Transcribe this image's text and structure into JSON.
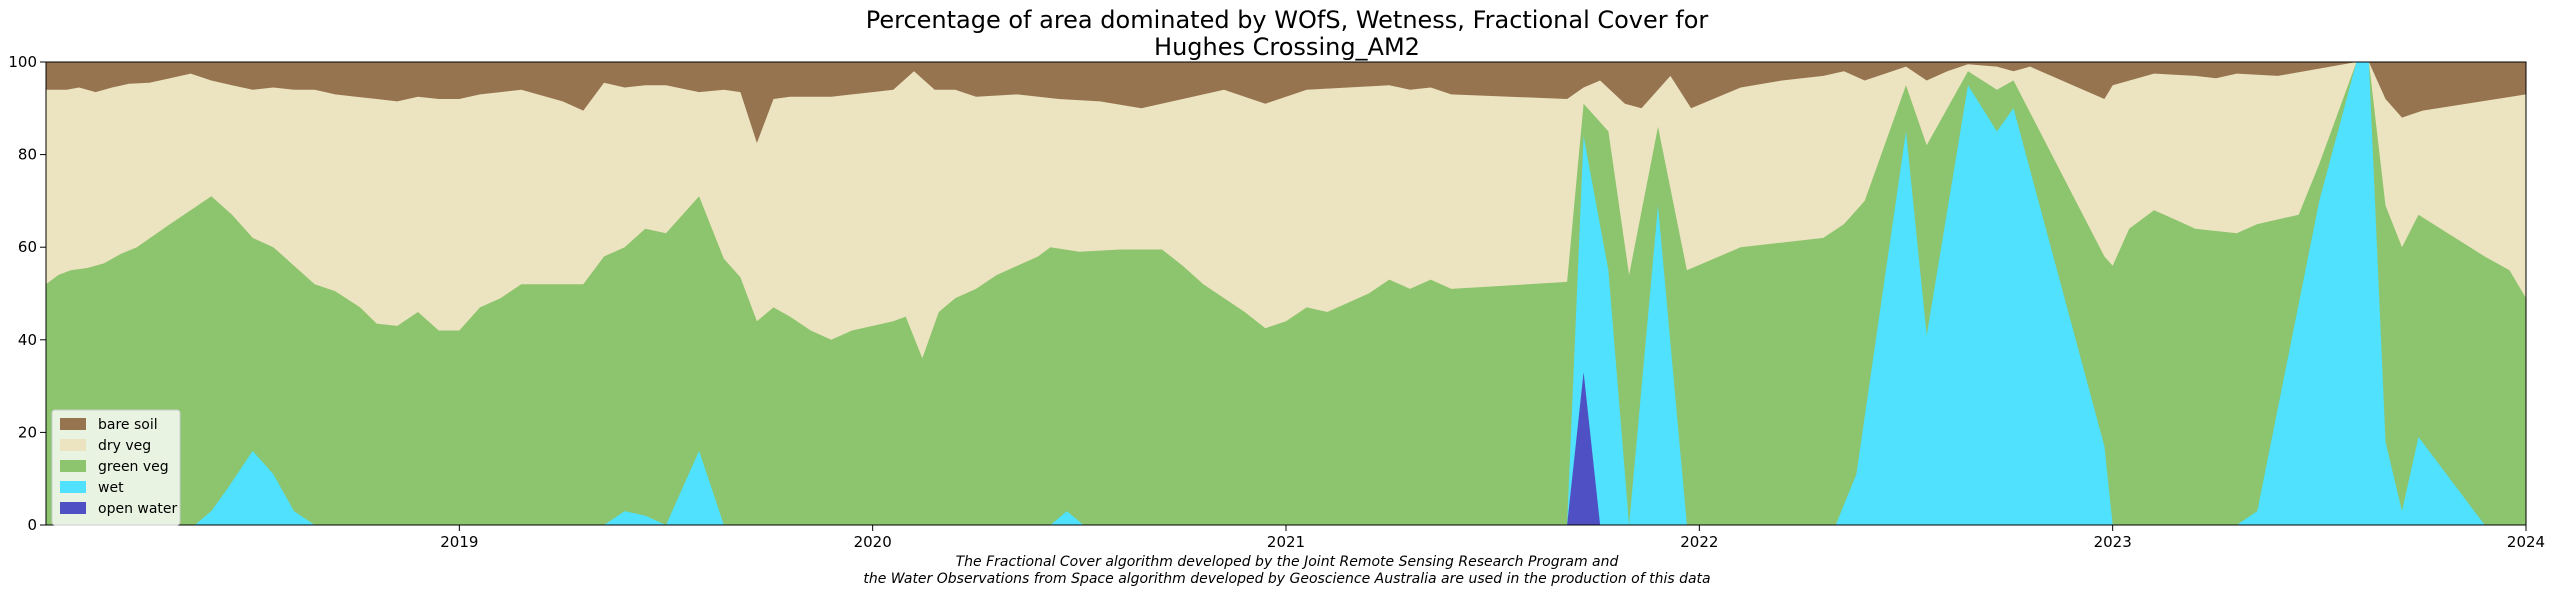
{
  "chart_data": {
    "type": "area",
    "stacked": true,
    "title_line1": "Percentage of area dominated by WOfS, Wetness, Fractional Cover for",
    "title_line2": "Hughes Crossing_AM2",
    "footnote_line1": "The Fractional Cover algorithm developed by the Joint Remote Sensing Research Program and",
    "footnote_line2": "the Water Observations from Space algorithm developed by Geoscience Australia are used in the production of this data",
    "xlim": [
      2018.0,
      2024.0
    ],
    "ylim": [
      0,
      100
    ],
    "x_ticks": [
      {
        "value": 2019,
        "label": "2019"
      },
      {
        "value": 2020,
        "label": "2020"
      },
      {
        "value": 2021,
        "label": "2021"
      },
      {
        "value": 2022,
        "label": "2022"
      },
      {
        "value": 2023,
        "label": "2023"
      },
      {
        "value": 2024,
        "label": "2024"
      }
    ],
    "y_ticks": [
      {
        "value": 0,
        "label": "0"
      },
      {
        "value": 20,
        "label": "20"
      },
      {
        "value": 40,
        "label": "40"
      },
      {
        "value": 60,
        "label": "60"
      },
      {
        "value": 80,
        "label": "80"
      },
      {
        "value": 100,
        "label": "100"
      }
    ],
    "grid": false,
    "legend_position": "lower-left",
    "legend": [
      {
        "name": "bare soil",
        "color": "#977450"
      },
      {
        "name": "dry veg",
        "color": "#ece3c0"
      },
      {
        "name": "green veg",
        "color": "#8dc46e"
      },
      {
        "name": "wet",
        "color": "#4fe1fd"
      },
      {
        "name": "open water",
        "color": "#4e50c3"
      }
    ],
    "series": [
      {
        "name": "open water",
        "color": "#4e50c3",
        "points": [
          [
            2018.0,
            0
          ],
          [
            2021.68,
            0
          ],
          [
            2021.72,
            33
          ],
          [
            2021.76,
            0
          ],
          [
            2024.0,
            0
          ]
        ]
      },
      {
        "name": "wet",
        "color": "#4fe1fd",
        "points": [
          [
            2018.0,
            0
          ],
          [
            2018.36,
            0
          ],
          [
            2018.4,
            3
          ],
          [
            2018.44,
            8
          ],
          [
            2018.5,
            16
          ],
          [
            2018.55,
            11
          ],
          [
            2018.6,
            3
          ],
          [
            2018.65,
            0
          ],
          [
            2019.35,
            0
          ],
          [
            2019.4,
            3
          ],
          [
            2019.45,
            2
          ],
          [
            2019.5,
            0
          ],
          [
            2019.58,
            16
          ],
          [
            2019.64,
            0
          ],
          [
            2020.43,
            0
          ],
          [
            2020.47,
            3
          ],
          [
            2020.51,
            0
          ],
          [
            2021.68,
            0
          ],
          [
            2021.72,
            84
          ],
          [
            2021.78,
            55
          ],
          [
            2021.83,
            0
          ],
          [
            2021.9,
            69
          ],
          [
            2021.97,
            0
          ],
          [
            2022.33,
            0
          ],
          [
            2022.38,
            11
          ],
          [
            2022.5,
            85
          ],
          [
            2022.55,
            41
          ],
          [
            2022.65,
            95
          ],
          [
            2022.72,
            85
          ],
          [
            2022.76,
            90
          ],
          [
            2022.98,
            17
          ],
          [
            2023.0,
            0
          ],
          [
            2023.3,
            0
          ],
          [
            2023.35,
            3
          ],
          [
            2023.5,
            70
          ],
          [
            2023.59,
            100
          ],
          [
            2023.62,
            100
          ],
          [
            2023.66,
            18
          ],
          [
            2023.7,
            3
          ],
          [
            2023.74,
            19
          ],
          [
            2023.9,
            0
          ],
          [
            2024.0,
            0
          ]
        ]
      },
      {
        "name": "green veg",
        "color": "#8dc46e",
        "points": [
          [
            2018.0,
            52
          ],
          [
            2018.03,
            54
          ],
          [
            2018.06,
            55
          ],
          [
            2018.1,
            55.5
          ],
          [
            2018.14,
            56.5
          ],
          [
            2018.18,
            58.5
          ],
          [
            2018.22,
            60
          ],
          [
            2018.26,
            62.5
          ],
          [
            2018.3,
            65
          ],
          [
            2018.35,
            68
          ],
          [
            2018.4,
            71
          ],
          [
            2018.45,
            67
          ],
          [
            2018.5,
            62
          ],
          [
            2018.55,
            60
          ],
          [
            2018.6,
            56
          ],
          [
            2018.65,
            52
          ],
          [
            2018.7,
            50.5
          ],
          [
            2018.76,
            47
          ],
          [
            2018.8,
            43.5
          ],
          [
            2018.85,
            43
          ],
          [
            2018.9,
            46
          ],
          [
            2018.95,
            42
          ],
          [
            2019.0,
            42
          ],
          [
            2019.05,
            47
          ],
          [
            2019.1,
            49
          ],
          [
            2019.15,
            52
          ],
          [
            2019.3,
            52
          ],
          [
            2019.35,
            58
          ],
          [
            2019.4,
            60
          ],
          [
            2019.45,
            64
          ],
          [
            2019.5,
            63
          ],
          [
            2019.58,
            71
          ],
          [
            2019.64,
            57.5
          ],
          [
            2019.68,
            53.5
          ],
          [
            2019.72,
            44
          ],
          [
            2019.76,
            47
          ],
          [
            2019.8,
            45
          ],
          [
            2019.85,
            42
          ],
          [
            2019.9,
            40
          ],
          [
            2019.95,
            42
          ],
          [
            2020.0,
            43
          ],
          [
            2020.05,
            44
          ],
          [
            2020.08,
            45
          ],
          [
            2020.12,
            36
          ],
          [
            2020.16,
            46
          ],
          [
            2020.2,
            49
          ],
          [
            2020.25,
            51
          ],
          [
            2020.3,
            54
          ],
          [
            2020.35,
            56
          ],
          [
            2020.4,
            58
          ],
          [
            2020.43,
            60
          ],
          [
            2020.5,
            59
          ],
          [
            2020.6,
            59.5
          ],
          [
            2020.7,
            59.5
          ],
          [
            2020.75,
            56
          ],
          [
            2020.8,
            52
          ],
          [
            2020.85,
            49
          ],
          [
            2020.9,
            46
          ],
          [
            2020.95,
            42.5
          ],
          [
            2021.0,
            44
          ],
          [
            2021.05,
            47
          ],
          [
            2021.1,
            46
          ],
          [
            2021.15,
            48
          ],
          [
            2021.2,
            50
          ],
          [
            2021.25,
            53
          ],
          [
            2021.3,
            51
          ],
          [
            2021.35,
            53
          ],
          [
            2021.4,
            51
          ],
          [
            2021.68,
            52.5
          ],
          [
            2021.72,
            91
          ],
          [
            2021.78,
            85
          ],
          [
            2021.83,
            54
          ],
          [
            2021.9,
            86
          ],
          [
            2021.97,
            55
          ],
          [
            2022.1,
            60
          ],
          [
            2022.2,
            61
          ],
          [
            2022.3,
            62
          ],
          [
            2022.35,
            65
          ],
          [
            2022.4,
            70
          ],
          [
            2022.5,
            95
          ],
          [
            2022.55,
            82
          ],
          [
            2022.65,
            98
          ],
          [
            2022.72,
            94
          ],
          [
            2022.76,
            96
          ],
          [
            2022.98,
            58
          ],
          [
            2023.0,
            56
          ],
          [
            2023.04,
            64
          ],
          [
            2023.1,
            68
          ],
          [
            2023.15,
            66
          ],
          [
            2023.2,
            64
          ],
          [
            2023.3,
            63
          ],
          [
            2023.35,
            65
          ],
          [
            2023.45,
            67
          ],
          [
            2023.5,
            78
          ],
          [
            2023.59,
            100
          ],
          [
            2023.62,
            100
          ],
          [
            2023.66,
            69
          ],
          [
            2023.7,
            60
          ],
          [
            2023.74,
            67
          ],
          [
            2023.9,
            58
          ],
          [
            2023.96,
            55
          ],
          [
            2024.0,
            49
          ]
        ]
      },
      {
        "name": "dry veg",
        "color": "#ece3c0",
        "points": [
          [
            2018.0,
            94
          ],
          [
            2018.05,
            94
          ],
          [
            2018.08,
            94.5
          ],
          [
            2018.12,
            93.5
          ],
          [
            2018.16,
            94.5
          ],
          [
            2018.2,
            95.3
          ],
          [
            2018.25,
            95.5
          ],
          [
            2018.3,
            96.5
          ],
          [
            2018.35,
            97.5
          ],
          [
            2018.4,
            96
          ],
          [
            2018.45,
            95
          ],
          [
            2018.5,
            94
          ],
          [
            2018.55,
            94.5
          ],
          [
            2018.6,
            94
          ],
          [
            2018.65,
            94
          ],
          [
            2018.7,
            93
          ],
          [
            2018.75,
            92.5
          ],
          [
            2018.8,
            92
          ],
          [
            2018.85,
            91.5
          ],
          [
            2018.9,
            92.5
          ],
          [
            2018.95,
            92
          ],
          [
            2019.0,
            92
          ],
          [
            2019.05,
            93
          ],
          [
            2019.1,
            93.5
          ],
          [
            2019.15,
            94
          ],
          [
            2019.25,
            91.5
          ],
          [
            2019.3,
            89.5
          ],
          [
            2019.35,
            95.5
          ],
          [
            2019.4,
            94.5
          ],
          [
            2019.45,
            95
          ],
          [
            2019.5,
            95
          ],
          [
            2019.58,
            93.5
          ],
          [
            2019.64,
            94
          ],
          [
            2019.68,
            93.5
          ],
          [
            2019.72,
            82.5
          ],
          [
            2019.76,
            92
          ],
          [
            2019.8,
            92.5
          ],
          [
            2019.85,
            92.5
          ],
          [
            2019.9,
            92.5
          ],
          [
            2019.95,
            93
          ],
          [
            2020.0,
            93.5
          ],
          [
            2020.05,
            94
          ],
          [
            2020.1,
            98
          ],
          [
            2020.15,
            94
          ],
          [
            2020.2,
            94
          ],
          [
            2020.25,
            92.5
          ],
          [
            2020.35,
            93
          ],
          [
            2020.45,
            92
          ],
          [
            2020.55,
            91.5
          ],
          [
            2020.65,
            90
          ],
          [
            2020.75,
            92
          ],
          [
            2020.85,
            94
          ],
          [
            2020.95,
            91
          ],
          [
            2021.05,
            94
          ],
          [
            2021.15,
            94.5
          ],
          [
            2021.25,
            95
          ],
          [
            2021.3,
            94
          ],
          [
            2021.35,
            94.5
          ],
          [
            2021.4,
            93
          ],
          [
            2021.68,
            92
          ],
          [
            2021.72,
            94.5
          ],
          [
            2021.76,
            96
          ],
          [
            2021.82,
            91
          ],
          [
            2021.86,
            90
          ],
          [
            2021.93,
            97
          ],
          [
            2021.98,
            90
          ],
          [
            2022.1,
            94.5
          ],
          [
            2022.2,
            96
          ],
          [
            2022.3,
            97
          ],
          [
            2022.35,
            98
          ],
          [
            2022.4,
            96
          ],
          [
            2022.5,
            99
          ],
          [
            2022.55,
            96
          ],
          [
            2022.6,
            98
          ],
          [
            2022.65,
            99.5
          ],
          [
            2022.72,
            99
          ],
          [
            2022.76,
            98
          ],
          [
            2022.8,
            99
          ],
          [
            2022.98,
            92
          ],
          [
            2023.0,
            95
          ],
          [
            2023.1,
            97.5
          ],
          [
            2023.2,
            97
          ],
          [
            2023.25,
            96.5
          ],
          [
            2023.3,
            97.5
          ],
          [
            2023.4,
            97
          ],
          [
            2023.59,
            100
          ],
          [
            2023.62,
            100
          ],
          [
            2023.66,
            92
          ],
          [
            2023.7,
            88
          ],
          [
            2023.75,
            89.5
          ],
          [
            2024.0,
            93
          ],
          [
            2024.0,
            90
          ]
        ]
      },
      {
        "name": "bare soil",
        "color": "#977450",
        "points": [
          [
            2018.0,
            100
          ],
          [
            2024.0,
            100
          ]
        ]
      }
    ]
  }
}
